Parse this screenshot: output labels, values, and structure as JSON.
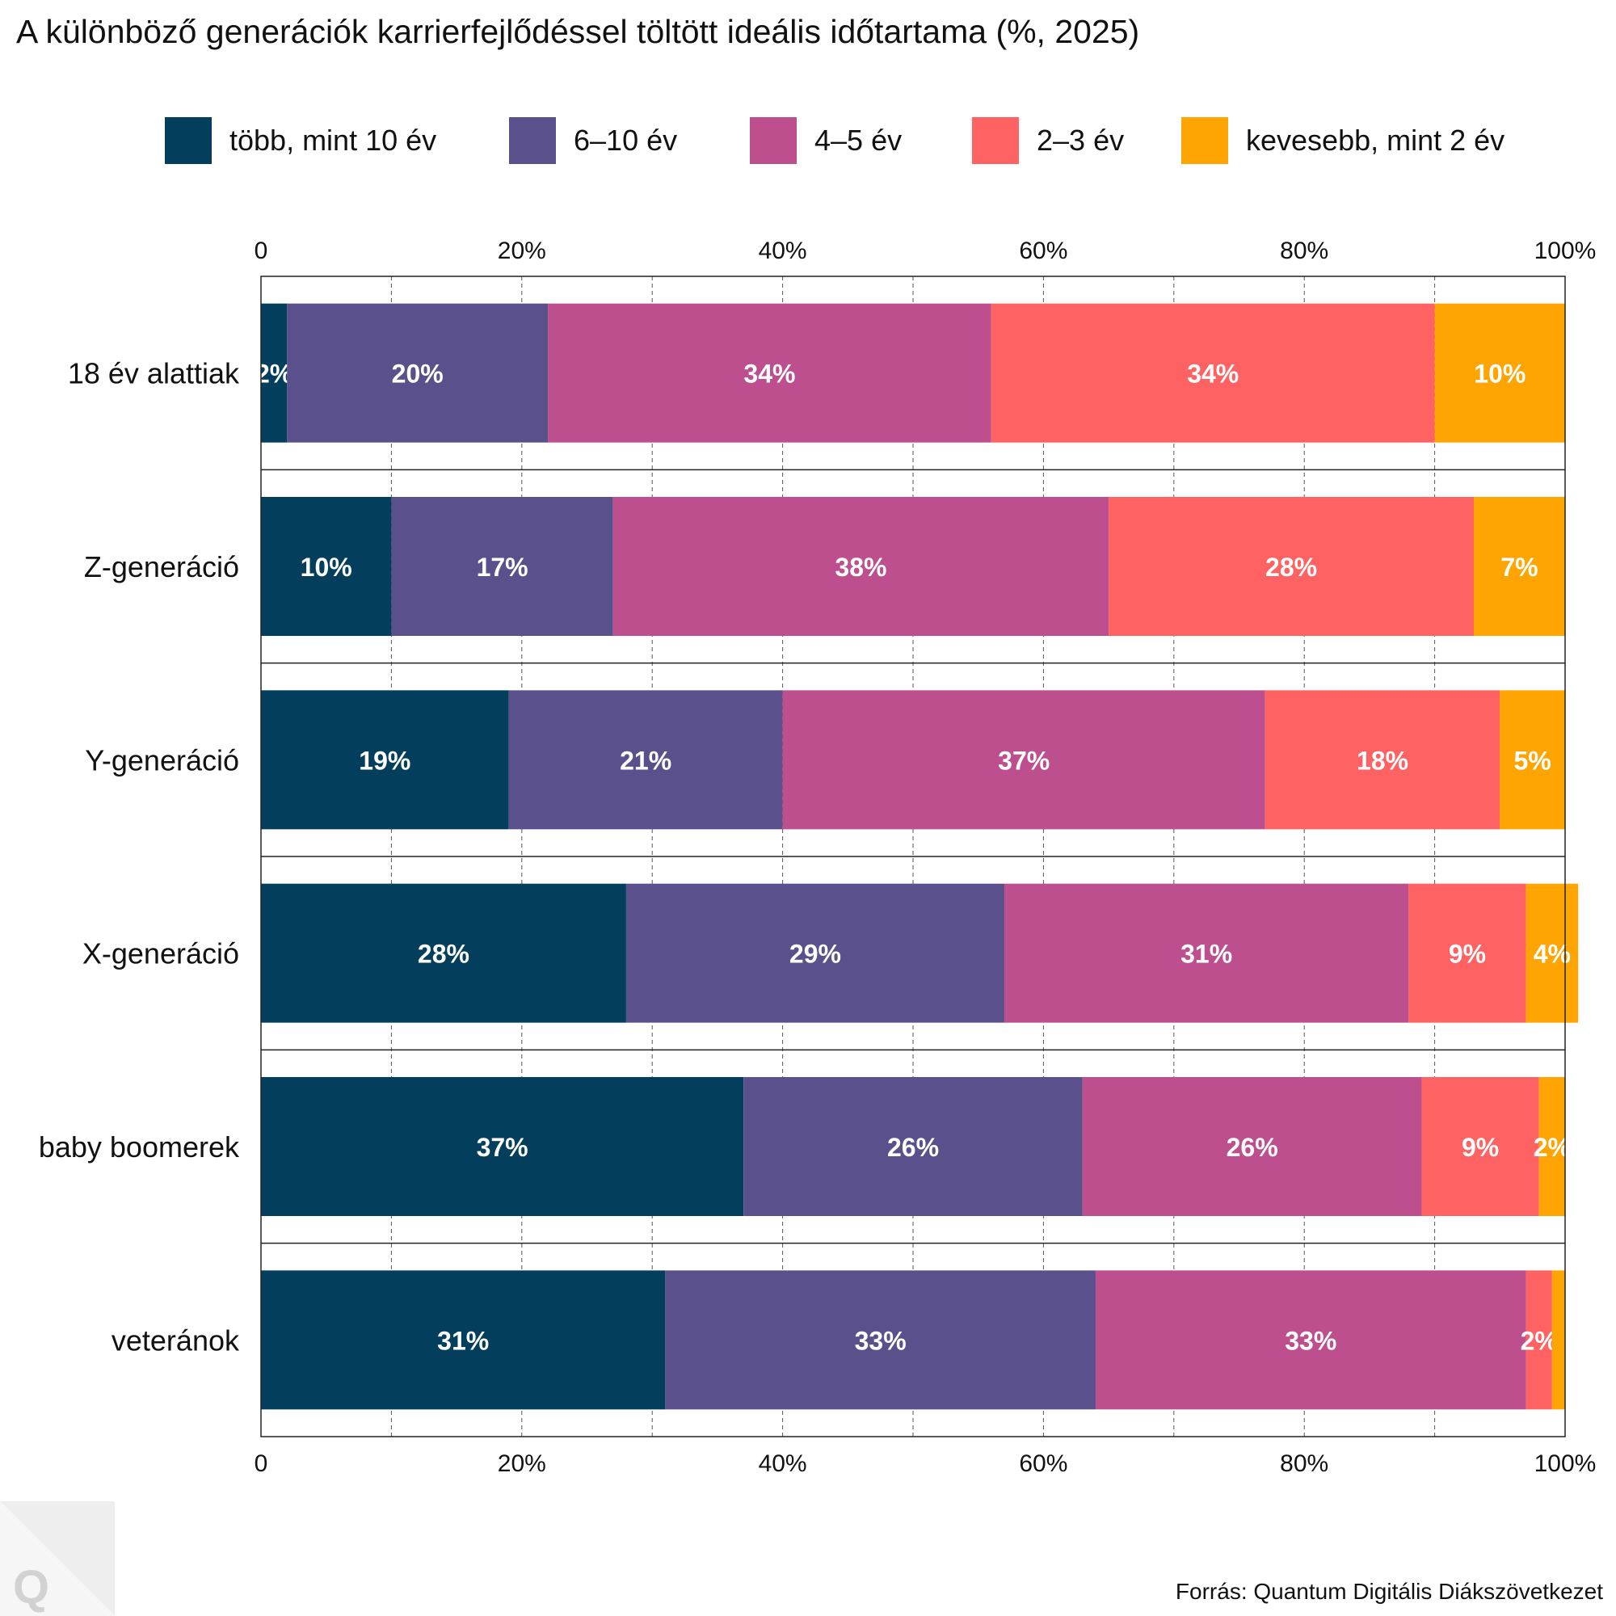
{
  "title": "A különböző generációk karrierfejlődéssel töltött ideális időtartama (%, 2025)",
  "source": "Forrás: Quantum Digitális Diákszövetkezet",
  "logo_letter": "Q",
  "colors": [
    "#033e5c",
    "#5a518c",
    "#bd4f8f",
    "#fe6262",
    "#fea503"
  ],
  "chart_data": {
    "type": "bar",
    "orientation": "horizontal",
    "stacked": true,
    "categories": [
      "18 év alattiak",
      "Z-generáció",
      "Y-generáció",
      "X-generáció",
      "baby boomerek",
      "veteránok"
    ],
    "series": [
      {
        "name": "több, mint 10 év",
        "values": [
          2,
          10,
          19,
          28,
          37,
          31
        ],
        "labels": [
          "2%",
          "10%",
          "19%",
          "28%",
          "37%",
          "31%"
        ]
      },
      {
        "name": "6–10 év",
        "values": [
          20,
          17,
          21,
          29,
          26,
          33
        ],
        "labels": [
          "20%",
          "17%",
          "21%",
          "29%",
          "26%",
          "33%"
        ]
      },
      {
        "name": "4–5 év",
        "values": [
          34,
          38,
          37,
          31,
          26,
          33
        ],
        "labels": [
          "34%",
          "38%",
          "37%",
          "31%",
          "26%",
          "33%"
        ]
      },
      {
        "name": "2–3 év",
        "values": [
          34,
          28,
          18,
          9,
          9,
          2
        ],
        "labels": [
          "34%",
          "28%",
          "18%",
          "9%",
          "9%",
          "2%"
        ]
      },
      {
        "name": "kevesebb, mint 2 év",
        "values": [
          10,
          7,
          5,
          4,
          2,
          1
        ],
        "labels": [
          "10%",
          "7%",
          "5%",
          "4%",
          "2%",
          ""
        ]
      }
    ],
    "x_ticks": [
      0,
      20,
      40,
      60,
      80,
      100
    ],
    "x_tick_labels": [
      "0",
      "20%",
      "40%",
      "60%",
      "80%",
      "100%"
    ],
    "grid_values": [
      10,
      20,
      30,
      40,
      50,
      60,
      70,
      80,
      90
    ],
    "xlim": [
      0,
      100
    ],
    "legend_position": "top",
    "grid": true
  }
}
